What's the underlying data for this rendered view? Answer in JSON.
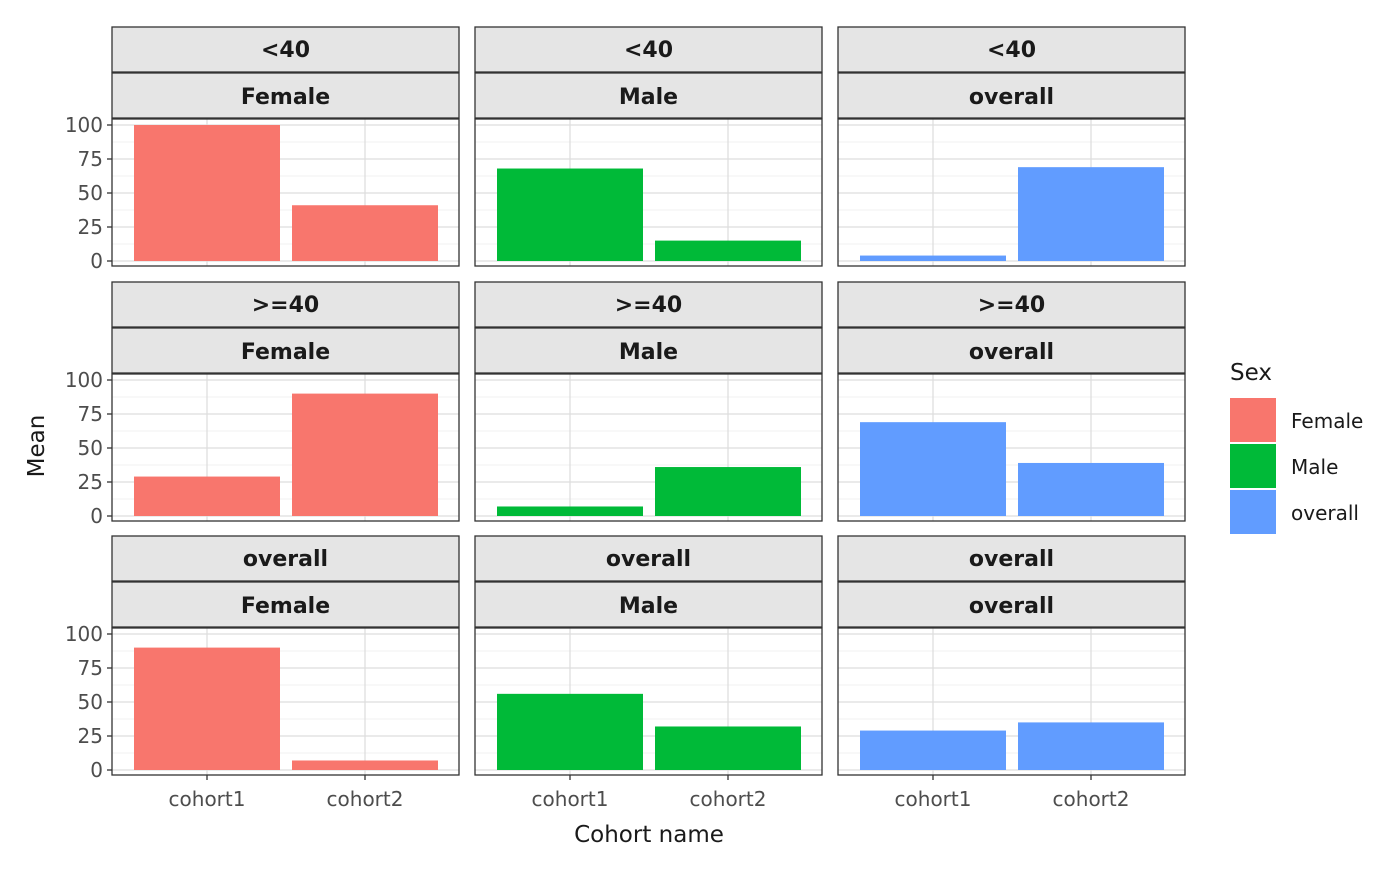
{
  "chart_data": {
    "type": "bar",
    "xlabel": "Cohort name",
    "ylabel": "Mean",
    "ylim": [
      0,
      100
    ],
    "yticks": [
      0,
      25,
      50,
      75,
      100
    ],
    "categories": [
      "cohort1",
      "cohort2"
    ],
    "grid": true,
    "legend": {
      "title": "Sex",
      "placement": "right",
      "entries": [
        {
          "label": "Female",
          "color": "#F8766D"
        },
        {
          "label": "Male",
          "color": "#00BA38"
        },
        {
          "label": "overall",
          "color": "#619CFF"
        }
      ]
    },
    "panels": [
      {
        "age": "<40",
        "sex": "Female",
        "color": "#F8766D",
        "values": [
          100,
          41
        ]
      },
      {
        "age": "<40",
        "sex": "Male",
        "color": "#00BA38",
        "values": [
          68,
          15
        ]
      },
      {
        "age": "<40",
        "sex": "overall",
        "color": "#619CFF",
        "values": [
          4,
          69
        ]
      },
      {
        "age": ">=40",
        "sex": "Female",
        "color": "#F8766D",
        "values": [
          29,
          90
        ]
      },
      {
        "age": ">=40",
        "sex": "Male",
        "color": "#00BA38",
        "values": [
          7,
          36
        ]
      },
      {
        "age": ">=40",
        "sex": "overall",
        "color": "#619CFF",
        "values": [
          69,
          39
        ]
      },
      {
        "age": "overall",
        "sex": "Female",
        "color": "#F8766D",
        "values": [
          90,
          7
        ]
      },
      {
        "age": "overall",
        "sex": "Male",
        "color": "#00BA38",
        "values": [
          56,
          32
        ]
      },
      {
        "age": "overall",
        "sex": "overall",
        "color": "#619CFF",
        "values": [
          29,
          35
        ]
      }
    ]
  }
}
